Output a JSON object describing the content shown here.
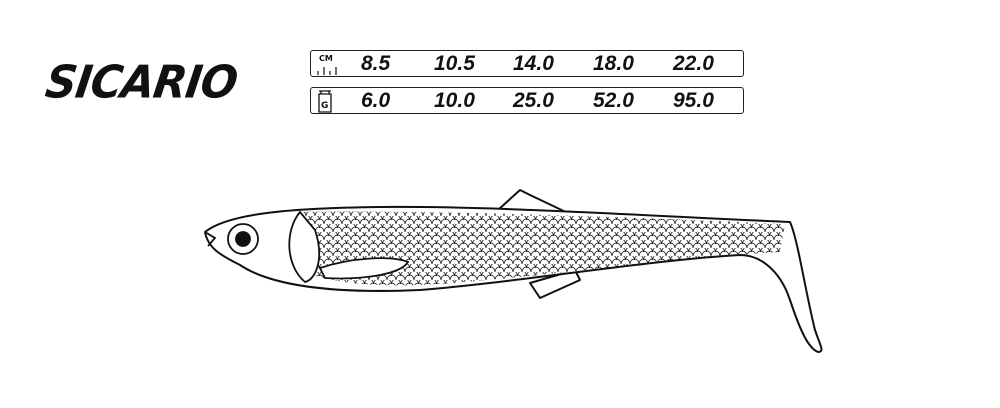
{
  "brand": {
    "name": "SICARIO"
  },
  "specs": {
    "length": {
      "unit_label": "CM",
      "icon": "ruler-icon",
      "values": [
        "8.5",
        "10.5",
        "14.0",
        "18.0",
        "22.0"
      ]
    },
    "weight": {
      "unit_label": "G",
      "icon": "weight-icon",
      "values": [
        "6.0",
        "10.0",
        "25.0",
        "52.0",
        "95.0"
      ]
    }
  },
  "illustration": {
    "subject": "fish-lure-icon",
    "line_color": "#111111"
  }
}
